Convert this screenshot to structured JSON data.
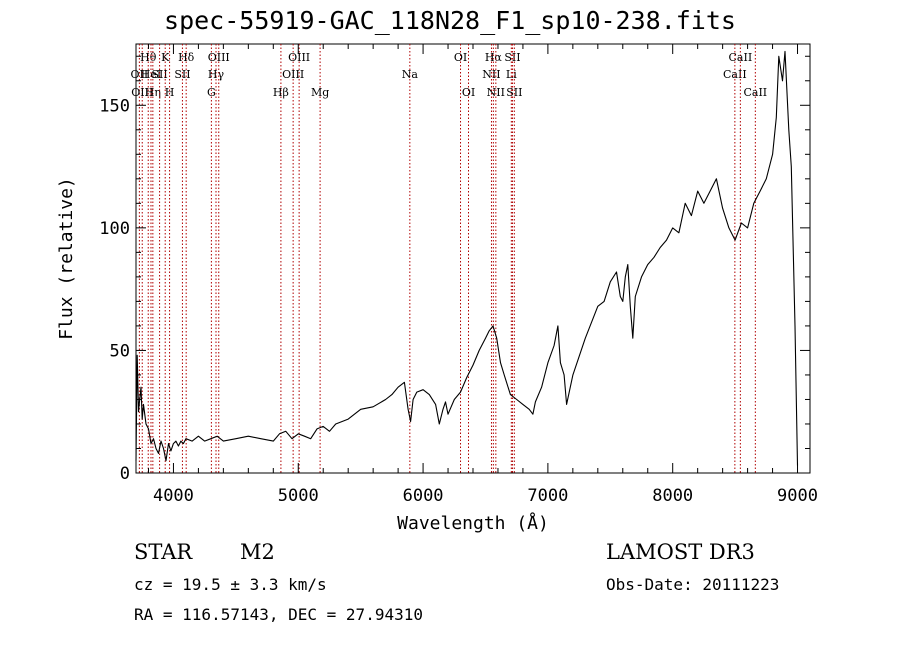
{
  "chart_data": {
    "type": "line",
    "title": "spec-55919-GAC_118N28_F1_sp10-238.fits",
    "xlabel": "Wavelength (Å)",
    "ylabel": "Flux (relative)",
    "xlim": [
      3700,
      9100
    ],
    "ylim": [
      0,
      175
    ],
    "xticks": [
      4000,
      5000,
      6000,
      7000,
      8000,
      9000
    ],
    "yticks": [
      0,
      50,
      100,
      150
    ],
    "series": [
      {
        "name": "spectrum",
        "x": [
          3700,
          3710,
          3720,
          3730,
          3740,
          3750,
          3760,
          3780,
          3800,
          3820,
          3840,
          3860,
          3880,
          3900,
          3920,
          3940,
          3960,
          3980,
          4000,
          4020,
          4040,
          4060,
          4080,
          4100,
          4150,
          4200,
          4250,
          4300,
          4350,
          4400,
          4500,
          4600,
          4700,
          4800,
          4850,
          4900,
          4950,
          5000,
          5050,
          5100,
          5150,
          5200,
          5250,
          5300,
          5400,
          5500,
          5600,
          5700,
          5750,
          5800,
          5850,
          5880,
          5900,
          5920,
          5950,
          6000,
          6050,
          6100,
          6130,
          6160,
          6180,
          6200,
          6250,
          6300,
          6350,
          6400,
          6450,
          6500,
          6530,
          6560,
          6590,
          6620,
          6650,
          6700,
          6750,
          6800,
          6850,
          6880,
          6900,
          6950,
          7000,
          7050,
          7080,
          7100,
          7130,
          7150,
          7200,
          7300,
          7400,
          7450,
          7500,
          7550,
          7580,
          7600,
          7620,
          7640,
          7660,
          7680,
          7700,
          7750,
          7800,
          7850,
          7900,
          7950,
          8000,
          8050,
          8100,
          8150,
          8200,
          8250,
          8300,
          8350,
          8400,
          8450,
          8500,
          8550,
          8600,
          8650,
          8700,
          8750,
          8800,
          8830,
          8850,
          8880,
          8900,
          8930,
          8950,
          8980,
          9000
        ],
        "values": [
          5,
          48,
          25,
          30,
          35,
          22,
          28,
          20,
          18,
          12,
          14,
          10,
          8,
          13,
          10,
          5,
          12,
          9,
          12,
          13,
          11,
          13,
          12,
          14,
          13,
          15,
          13,
          14,
          15,
          13,
          14,
          15,
          14,
          13,
          16,
          17,
          14,
          16,
          15,
          14,
          18,
          19,
          17,
          20,
          22,
          26,
          27,
          30,
          32,
          35,
          37,
          26,
          21,
          30,
          33,
          34,
          32,
          28,
          20,
          26,
          29,
          24,
          30,
          33,
          39,
          44,
          50,
          55,
          58,
          60,
          55,
          45,
          40,
          32,
          30,
          28,
          26,
          24,
          29,
          35,
          45,
          52,
          60,
          45,
          40,
          28,
          40,
          55,
          68,
          70,
          78,
          82,
          72,
          70,
          80,
          85,
          68,
          55,
          72,
          80,
          85,
          88,
          92,
          95,
          100,
          98,
          110,
          105,
          115,
          110,
          115,
          120,
          108,
          100,
          95,
          102,
          100,
          110,
          115,
          120,
          130,
          145,
          170,
          160,
          172,
          140,
          125,
          60,
          3
        ]
      }
    ],
    "line_labels": [
      {
        "wl": 3727,
        "row": 2,
        "text": "OII"
      },
      {
        "wl": 3750,
        "row": 3,
        "text": "OIII"
      },
      {
        "wl": 3798,
        "row": 1,
        "text": "Hθ"
      },
      {
        "wl": 3820,
        "row": 2,
        "text": "HeI"
      },
      {
        "wl": 3835,
        "row": 3,
        "text": "Hη"
      },
      {
        "wl": 3889,
        "row": 2,
        "text": "SII"
      },
      {
        "wl": 3934,
        "row": 1,
        "text": "K"
      },
      {
        "wl": 3969,
        "row": 3,
        "text": "H"
      },
      {
        "wl": 4072,
        "row": 2,
        "text": "SII"
      },
      {
        "wl": 4102,
        "row": 1,
        "text": "Hδ"
      },
      {
        "wl": 4304,
        "row": 3,
        "text": "G"
      },
      {
        "wl": 4341,
        "row": 2,
        "text": "Hγ"
      },
      {
        "wl": 4363,
        "row": 1,
        "text": "OIII"
      },
      {
        "wl": 4861,
        "row": 3,
        "text": "Hβ"
      },
      {
        "wl": 4959,
        "row": 2,
        "text": "OIII"
      },
      {
        "wl": 5007,
        "row": 1,
        "text": "OIII"
      },
      {
        "wl": 5175,
        "row": 3,
        "text": "Mg"
      },
      {
        "wl": 5894,
        "row": 2,
        "text": "Na"
      },
      {
        "wl": 6300,
        "row": 1,
        "text": "OI"
      },
      {
        "wl": 6364,
        "row": 3,
        "text": "OI"
      },
      {
        "wl": 6548,
        "row": 2,
        "text": "NII"
      },
      {
        "wl": 6563,
        "row": 1,
        "text": "Hα"
      },
      {
        "wl": 6583,
        "row": 3,
        "text": "NII"
      },
      {
        "wl": 6707,
        "row": 2,
        "text": "Li"
      },
      {
        "wl": 6716,
        "row": 1,
        "text": "SII"
      },
      {
        "wl": 6731,
        "row": 3,
        "text": "SII"
      },
      {
        "wl": 8498,
        "row": 2,
        "text": "CaII"
      },
      {
        "wl": 8542,
        "row": 1,
        "text": "CaII"
      },
      {
        "wl": 8662,
        "row": 3,
        "text": "CaII"
      }
    ]
  },
  "footer": {
    "object_class": "STAR",
    "subclass": "M2",
    "survey": "LAMOST DR3",
    "redshift": "cz = 19.5 ± 3.3 km/s",
    "obs_date": "Obs-Date: 20111223",
    "coords": "RA = 116.57143, DEC =  27.94310"
  }
}
